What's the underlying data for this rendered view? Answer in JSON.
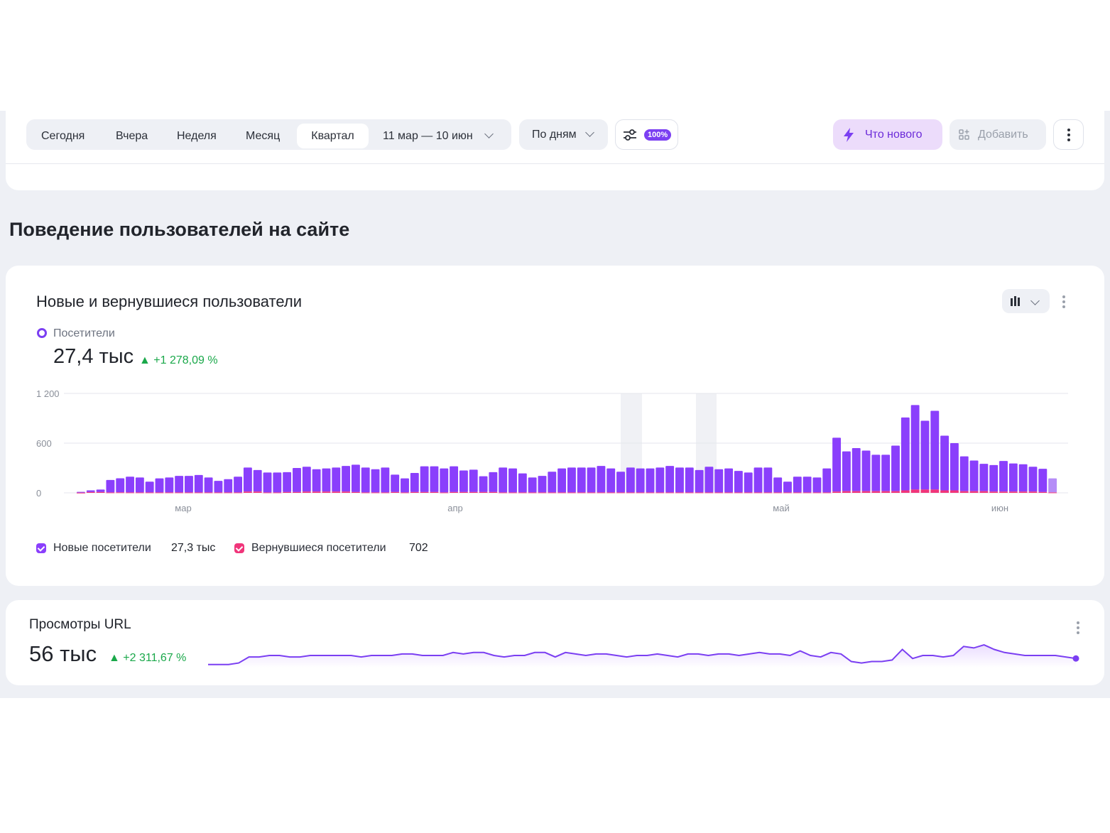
{
  "toolbar": {
    "periods": [
      "Сегодня",
      "Вчера",
      "Неделя",
      "Месяц",
      "Квартал"
    ],
    "active_period": "Квартал",
    "date_range": "11 мар — 10 июн",
    "granularity": "По дням",
    "sampling_badge": "100%",
    "whats_new_label": "Что нового",
    "add_label": "Добавить"
  },
  "section": {
    "title": "Поведение пользователей на сайте"
  },
  "widget_users": {
    "title": "Новые и вернувшиеся пользователи",
    "metric_label": "Посетители",
    "metric_value": "27,4 тыс",
    "metric_delta": "▲ +1 278,09 %",
    "legend": [
      {
        "label": "Новые посетители",
        "value": "27,3 тыс",
        "color": "#8a3ffc"
      },
      {
        "label": "Вернувшиеся посетители",
        "value": "702",
        "color": "#f0357a"
      }
    ]
  },
  "widget_views": {
    "title": "Просмотры URL",
    "metric_value": "56 тыс",
    "metric_delta": "▲ +2 311,67 %"
  },
  "colors": {
    "accent": "#7b3ff2",
    "bar_new": "#8a3ffc",
    "bar_returning": "#f0357a",
    "positive": "#1aa84a"
  },
  "chart_data": [
    {
      "type": "bar",
      "stacked": true,
      "y_ticks": [
        "1 200",
        "600",
        "0"
      ],
      "ylim": [
        0,
        1200
      ],
      "x_tick_labels": [
        "мар",
        "апр",
        "май",
        "июн"
      ],
      "series": [
        {
          "name": "Новые посетители",
          "values": [
            10,
            20,
            30,
            150,
            170,
            190,
            180,
            130,
            170,
            180,
            200,
            200,
            210,
            180,
            140,
            160,
            190,
            290,
            260,
            240,
            240,
            240,
            290,
            300,
            270,
            280,
            290,
            310,
            330,
            300,
            280,
            300,
            210,
            170,
            230,
            310,
            310,
            290,
            310,
            260,
            270,
            190,
            240,
            300,
            290,
            230,
            180,
            200,
            250,
            290,
            300,
            300,
            300,
            320,
            290,
            250,
            300,
            290,
            290,
            300,
            320,
            300,
            300,
            270,
            310,
            280,
            290,
            260,
            240,
            300,
            300,
            180,
            130,
            190,
            190,
            180,
            290,
            650,
            480,
            520,
            490,
            440,
            440,
            550,
            880,
            1020,
            830,
            950,
            660,
            570,
            420,
            370,
            330,
            320,
            370,
            340,
            330,
            300,
            280,
            170
          ]
        },
        {
          "name": "Вернувшиеся посетители",
          "values": [
            2,
            10,
            10,
            5,
            6,
            5,
            5,
            5,
            5,
            5,
            5,
            5,
            5,
            5,
            5,
            5,
            5,
            15,
            15,
            5,
            5,
            10,
            10,
            15,
            15,
            15,
            15,
            15,
            10,
            5,
            5,
            5,
            10,
            5,
            10,
            10,
            10,
            5,
            10,
            10,
            10,
            10,
            10,
            5,
            5,
            5,
            5,
            5,
            5,
            5,
            5,
            5,
            5,
            5,
            5,
            5,
            5,
            5,
            5,
            5,
            5,
            5,
            5,
            5,
            5,
            5,
            5,
            5,
            5,
            5,
            5,
            5,
            5,
            5,
            5,
            5,
            5,
            15,
            20,
            20,
            20,
            20,
            20,
            20,
            30,
            40,
            40,
            40,
            30,
            30,
            20,
            20,
            20,
            15,
            15,
            15,
            15,
            15,
            10,
            5
          ]
        }
      ]
    },
    {
      "type": "line",
      "series": [
        {
          "name": "Просмотры URL",
          "values": [
            2,
            2,
            2,
            3,
            7,
            7,
            8,
            8,
            7,
            7,
            8,
            8,
            8,
            8,
            8,
            7,
            8,
            8,
            8,
            9,
            9,
            8,
            8,
            8,
            10,
            9,
            10,
            10,
            8,
            7,
            8,
            8,
            10,
            10,
            7,
            10,
            9,
            8,
            9,
            9,
            8,
            7,
            8,
            8,
            9,
            8,
            7,
            9,
            9,
            8,
            9,
            9,
            8,
            9,
            10,
            9,
            9,
            8,
            11,
            8,
            7,
            10,
            9,
            4,
            3,
            4,
            4,
            5,
            12,
            6,
            8,
            8,
            7,
            8,
            14,
            13,
            15,
            12,
            10,
            9,
            8,
            8,
            8,
            8,
            7,
            6
          ]
        }
      ]
    }
  ]
}
